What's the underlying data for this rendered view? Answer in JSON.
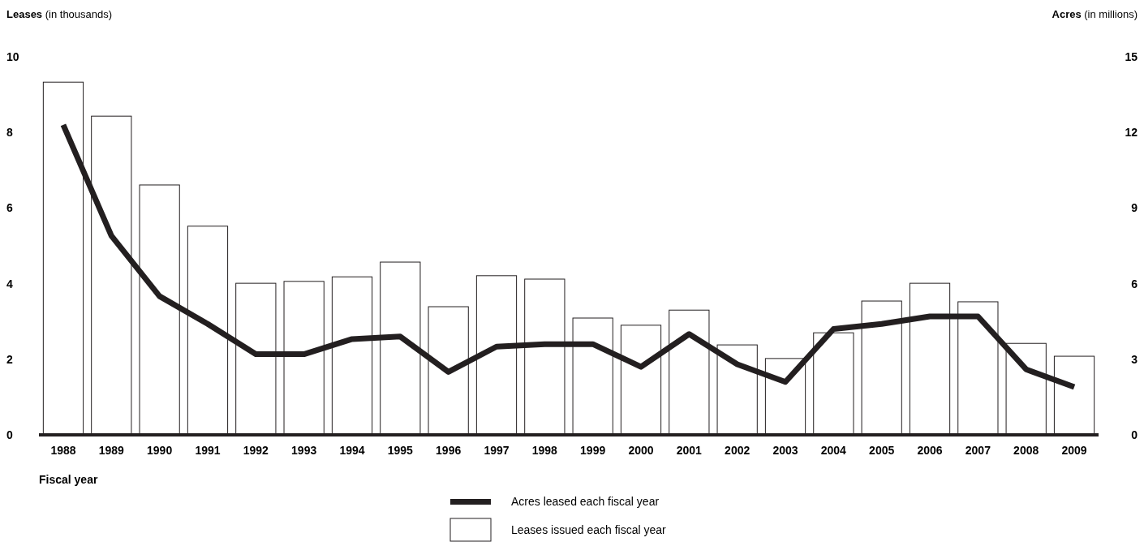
{
  "chart_data": {
    "type": "bar",
    "ylabel": "Leases (in thousands)",
    "y2label": "Acres (in millions)",
    "xlabel": "Fiscal year",
    "categories": [
      "1988",
      "1989",
      "1990",
      "1991",
      "1992",
      "1993",
      "1994",
      "1995",
      "1996",
      "1997",
      "1998",
      "1999",
      "2000",
      "2001",
      "2002",
      "2003",
      "2004",
      "2005",
      "2006",
      "2007",
      "2008",
      "2009"
    ],
    "series": [
      {
        "name": "Acres leased each fiscal year",
        "type": "line",
        "axis": "y2",
        "color": "#231f20",
        "values": [
          12.3,
          7.9,
          5.5,
          4.4,
          3.2,
          3.2,
          3.8,
          3.9,
          2.5,
          3.5,
          3.6,
          3.6,
          2.7,
          4.0,
          2.8,
          2.1,
          4.2,
          4.4,
          4.7,
          4.7,
          2.6,
          1.9
        ]
      },
      {
        "name": "Leases issued each fiscal year",
        "color": "#ffffff",
        "values": [
          9.33,
          8.43,
          6.61,
          5.52,
          4.01,
          4.06,
          4.18,
          4.57,
          3.39,
          4.21,
          4.12,
          3.09,
          2.9,
          3.3,
          2.38,
          2.02,
          2.7,
          3.54,
          4.01,
          3.52,
          2.42,
          2.08
        ]
      }
    ],
    "ylim": [
      0,
      10
    ],
    "yticks": [
      0,
      2,
      4,
      6,
      8,
      10
    ],
    "y2lim": [
      0,
      15
    ],
    "y2ticks": [
      0,
      3,
      6,
      9,
      12,
      15
    ],
    "legend": "bottom",
    "grid": false
  }
}
